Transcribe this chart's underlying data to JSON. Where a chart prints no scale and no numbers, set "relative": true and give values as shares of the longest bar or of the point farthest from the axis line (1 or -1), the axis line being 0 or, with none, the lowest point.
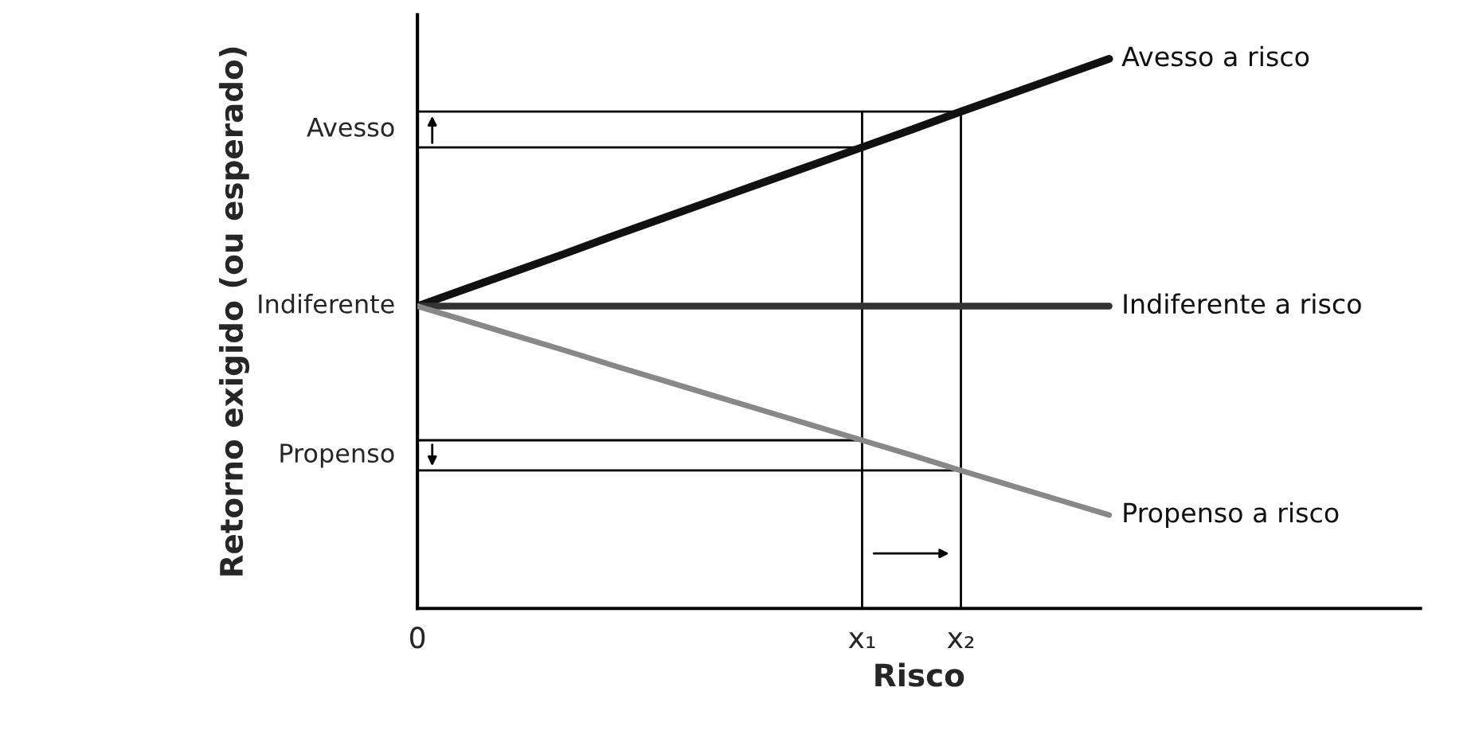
{
  "chart_data": {
    "type": "line",
    "relative": true,
    "xlabel": "Risco",
    "ylabel": "Retorno exigido (ou esperado)",
    "categories": [
      "0",
      null,
      null,
      null,
      null,
      null,
      null,
      null,
      null,
      "x₁",
      null,
      "x₂",
      null,
      null,
      null
    ],
    "grid": false,
    "legend": false,
    "marker": "none",
    "line_style": "solid",
    "series": [
      {
        "name": "Avesso a risco",
        "color": "#111111",
        "values": [
          0.55,
          0.582,
          0.614,
          0.646,
          0.679,
          0.711,
          0.743,
          0.775,
          0.807,
          0.839,
          0.871,
          0.904,
          0.936,
          0.968,
          1.0
        ]
      },
      {
        "name": "Indiferente a risco",
        "color": "#333333",
        "values": [
          0.55,
          0.55,
          0.55,
          0.55,
          0.55,
          0.55,
          0.55,
          0.55,
          0.55,
          0.55,
          0.55,
          0.55,
          0.55,
          0.55,
          0.55
        ]
      },
      {
        "name": "Propenso a risco",
        "color": "#888888",
        "values": [
          0.55,
          0.523,
          0.496,
          0.469,
          0.441,
          0.414,
          0.387,
          0.36,
          0.333,
          0.306,
          0.279,
          0.251,
          0.224,
          0.197,
          0.17
        ]
      },
      {
        "color": "#000000",
        "values": [
          0.839,
          0.839,
          0.839,
          0.839,
          0.839,
          0.839,
          0.839,
          0.839,
          0.839,
          0.839,
          null,
          null,
          null,
          null,
          null
        ]
      },
      {
        "color": "#000000",
        "values": [
          0.904,
          0.904,
          0.904,
          0.904,
          0.904,
          0.904,
          0.904,
          0.904,
          0.904,
          0.904,
          0.904,
          0.904,
          null,
          null,
          null
        ]
      },
      {
        "color": "#000000",
        "values": [
          0.306,
          0.306,
          0.306,
          0.306,
          0.306,
          0.306,
          0.306,
          0.306,
          0.306,
          0.306,
          null,
          null,
          null,
          null,
          null
        ]
      },
      {
        "color": "#000000",
        "values": [
          0.251,
          0.251,
          0.251,
          0.251,
          0.251,
          0.251,
          0.251,
          0.251,
          0.251,
          0.251,
          0.251,
          0.251,
          null,
          null,
          null
        ]
      }
    ],
    "ref_lines": [
      {
        "axis": "x",
        "value": "x₁",
        "color": "#000000"
      },
      {
        "axis": "x",
        "value": "x₂",
        "color": "#000000"
      }
    ],
    "annotations": [
      "Avesso",
      "Indiferente",
      "Propenso"
    ]
  }
}
